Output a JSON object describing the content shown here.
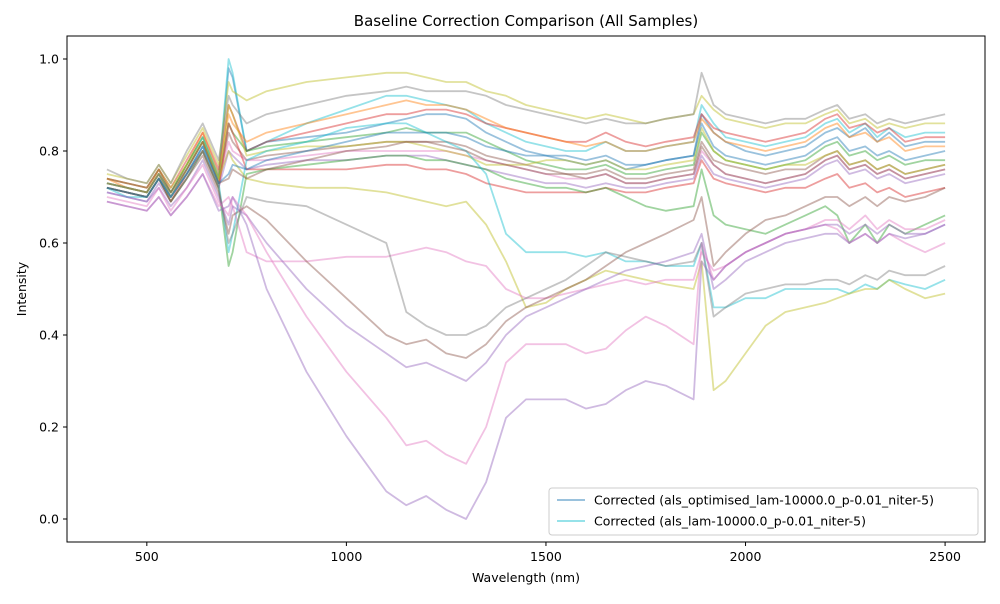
{
  "chart_data": {
    "type": "line",
    "title": "Baseline Correction Comparison (All Samples)",
    "xlabel": "Wavelength (nm)",
    "ylabel": "Intensity",
    "xlim": [
      300,
      2600
    ],
    "ylim": [
      -0.05,
      1.05
    ],
    "xticks": [
      500,
      1000,
      1500,
      2000,
      2500
    ],
    "yticks": [
      0.0,
      0.2,
      0.4,
      0.6,
      0.8,
      1.0
    ],
    "grid": false,
    "legend_position": "lower right",
    "x": [
      400,
      450,
      500,
      530,
      560,
      600,
      640,
      680,
      705,
      715,
      750,
      800,
      900,
      1000,
      1100,
      1150,
      1200,
      1250,
      1300,
      1350,
      1400,
      1450,
      1500,
      1550,
      1600,
      1650,
      1700,
      1750,
      1800,
      1870,
      1890,
      1920,
      1950,
      2000,
      2050,
      2100,
      2150,
      2200,
      2230,
      2260,
      2300,
      2330,
      2360,
      2400,
      2450,
      2500
    ],
    "legend": [
      "Corrected (als_optimised_lam-10000.0_p-0.01_niter-5)",
      "Corrected (als_lam-10000.0_p-0.01_niter-5)"
    ],
    "series": [
      {
        "color": "#1f77b4",
        "values": [
          0.72,
          0.71,
          0.7,
          0.74,
          0.7,
          0.76,
          0.82,
          0.74,
          0.98,
          0.96,
          0.8,
          0.82,
          0.83,
          0.84,
          0.86,
          0.87,
          0.88,
          0.88,
          0.87,
          0.84,
          0.82,
          0.8,
          0.79,
          0.78,
          0.77,
          0.78,
          0.76,
          0.77,
          0.78,
          0.79,
          0.88,
          0.84,
          0.82,
          0.8,
          0.79,
          0.8,
          0.81,
          0.84,
          0.85,
          0.83,
          0.85,
          0.82,
          0.84,
          0.81,
          0.82,
          0.82
        ]
      },
      {
        "color": "#17becf",
        "values": [
          0.73,
          0.72,
          0.71,
          0.75,
          0.71,
          0.77,
          0.83,
          0.75,
          1.0,
          0.97,
          0.8,
          0.82,
          0.86,
          0.89,
          0.92,
          0.92,
          0.91,
          0.9,
          0.89,
          0.86,
          0.84,
          0.82,
          0.81,
          0.8,
          0.8,
          0.82,
          0.8,
          0.8,
          0.81,
          0.82,
          0.9,
          0.86,
          0.83,
          0.82,
          0.81,
          0.82,
          0.83,
          0.86,
          0.87,
          0.84,
          0.86,
          0.83,
          0.85,
          0.83,
          0.84,
          0.84
        ]
      },
      {
        "color": "#d62728",
        "values": [
          0.74,
          0.73,
          0.72,
          0.76,
          0.72,
          0.78,
          0.84,
          0.76,
          0.9,
          0.88,
          0.8,
          0.82,
          0.84,
          0.86,
          0.88,
          0.88,
          0.89,
          0.89,
          0.88,
          0.86,
          0.85,
          0.84,
          0.83,
          0.82,
          0.82,
          0.84,
          0.82,
          0.81,
          0.82,
          0.83,
          0.88,
          0.85,
          0.84,
          0.83,
          0.82,
          0.83,
          0.84,
          0.87,
          0.88,
          0.85,
          0.86,
          0.84,
          0.85,
          0.82,
          0.83,
          0.83
        ]
      },
      {
        "color": "#bcbd22",
        "values": [
          0.75,
          0.74,
          0.73,
          0.77,
          0.73,
          0.79,
          0.85,
          0.77,
          0.95,
          0.93,
          0.91,
          0.93,
          0.95,
          0.96,
          0.97,
          0.97,
          0.96,
          0.95,
          0.95,
          0.93,
          0.92,
          0.9,
          0.89,
          0.88,
          0.87,
          0.88,
          0.87,
          0.86,
          0.87,
          0.88,
          0.92,
          0.89,
          0.87,
          0.86,
          0.85,
          0.86,
          0.86,
          0.88,
          0.89,
          0.86,
          0.87,
          0.85,
          0.86,
          0.85,
          0.86,
          0.86
        ]
      },
      {
        "color": "#7f7f7f",
        "values": [
          0.76,
          0.74,
          0.73,
          0.77,
          0.73,
          0.8,
          0.86,
          0.78,
          0.92,
          0.9,
          0.86,
          0.88,
          0.9,
          0.92,
          0.93,
          0.94,
          0.93,
          0.93,
          0.93,
          0.92,
          0.9,
          0.89,
          0.88,
          0.87,
          0.86,
          0.87,
          0.86,
          0.86,
          0.87,
          0.88,
          0.97,
          0.9,
          0.88,
          0.87,
          0.86,
          0.87,
          0.87,
          0.89,
          0.9,
          0.87,
          0.88,
          0.86,
          0.87,
          0.86,
          0.87,
          0.88
        ]
      },
      {
        "color": "#ff7f0e",
        "values": [
          0.74,
          0.72,
          0.71,
          0.76,
          0.71,
          0.77,
          0.84,
          0.75,
          0.88,
          0.86,
          0.82,
          0.84,
          0.86,
          0.88,
          0.9,
          0.91,
          0.9,
          0.9,
          0.89,
          0.87,
          0.85,
          0.84,
          0.83,
          0.82,
          0.81,
          0.82,
          0.8,
          0.8,
          0.81,
          0.82,
          0.87,
          0.84,
          0.82,
          0.81,
          0.8,
          0.81,
          0.82,
          0.85,
          0.86,
          0.83,
          0.84,
          0.82,
          0.83,
          0.8,
          0.81,
          0.81
        ]
      },
      {
        "color": "#2ca02c",
        "values": [
          0.73,
          0.72,
          0.71,
          0.75,
          0.71,
          0.77,
          0.83,
          0.74,
          0.86,
          0.84,
          0.8,
          0.81,
          0.82,
          0.83,
          0.84,
          0.85,
          0.84,
          0.84,
          0.84,
          0.82,
          0.8,
          0.78,
          0.77,
          0.76,
          0.76,
          0.77,
          0.75,
          0.75,
          0.76,
          0.77,
          0.84,
          0.8,
          0.78,
          0.77,
          0.76,
          0.77,
          0.78,
          0.81,
          0.82,
          0.79,
          0.8,
          0.78,
          0.79,
          0.77,
          0.78,
          0.78
        ]
      },
      {
        "color": "#8c564b",
        "values": [
          0.73,
          0.72,
          0.71,
          0.75,
          0.7,
          0.76,
          0.82,
          0.73,
          0.84,
          0.82,
          0.78,
          0.79,
          0.8,
          0.81,
          0.82,
          0.82,
          0.82,
          0.82,
          0.81,
          0.79,
          0.78,
          0.77,
          0.76,
          0.75,
          0.75,
          0.76,
          0.74,
          0.74,
          0.75,
          0.76,
          0.82,
          0.78,
          0.77,
          0.76,
          0.75,
          0.76,
          0.76,
          0.79,
          0.8,
          0.77,
          0.78,
          0.76,
          0.77,
          0.75,
          0.76,
          0.77
        ]
      },
      {
        "color": "#e377c2",
        "values": [
          0.72,
          0.71,
          0.7,
          0.74,
          0.7,
          0.75,
          0.81,
          0.73,
          0.82,
          0.8,
          0.78,
          0.78,
          0.79,
          0.8,
          0.8,
          0.8,
          0.8,
          0.8,
          0.79,
          0.78,
          0.77,
          0.76,
          0.75,
          0.74,
          0.74,
          0.75,
          0.73,
          0.73,
          0.74,
          0.75,
          0.8,
          0.77,
          0.75,
          0.74,
          0.73,
          0.74,
          0.75,
          0.78,
          0.79,
          0.76,
          0.77,
          0.75,
          0.76,
          0.74,
          0.75,
          0.76
        ]
      },
      {
        "color": "#9467bd",
        "values": [
          0.71,
          0.7,
          0.69,
          0.73,
          0.69,
          0.74,
          0.8,
          0.72,
          0.8,
          0.79,
          0.76,
          0.77,
          0.78,
          0.78,
          0.79,
          0.79,
          0.79,
          0.78,
          0.77,
          0.76,
          0.75,
          0.74,
          0.73,
          0.73,
          0.72,
          0.73,
          0.72,
          0.72,
          0.73,
          0.74,
          0.79,
          0.75,
          0.74,
          0.73,
          0.72,
          0.73,
          0.74,
          0.77,
          0.78,
          0.75,
          0.76,
          0.74,
          0.75,
          0.73,
          0.74,
          0.75
        ]
      },
      {
        "color": "#bcbd22",
        "values": [
          0.73,
          0.72,
          0.71,
          0.75,
          0.7,
          0.76,
          0.82,
          0.73,
          0.9,
          0.88,
          0.79,
          0.8,
          0.81,
          0.81,
          0.82,
          0.82,
          0.81,
          0.8,
          0.79,
          0.77,
          0.77,
          0.77,
          0.78,
          0.78,
          0.77,
          0.78,
          0.76,
          0.76,
          0.77,
          0.78,
          0.85,
          0.8,
          0.78,
          0.77,
          0.76,
          0.77,
          0.77,
          0.79,
          0.8,
          0.77,
          0.78,
          0.76,
          0.77,
          0.75,
          0.76,
          0.77
        ]
      },
      {
        "color": "#d62728",
        "values": [
          0.72,
          0.71,
          0.7,
          0.74,
          0.69,
          0.75,
          0.8,
          0.72,
          0.86,
          0.84,
          0.76,
          0.76,
          0.76,
          0.76,
          0.77,
          0.77,
          0.76,
          0.76,
          0.75,
          0.73,
          0.72,
          0.71,
          0.71,
          0.71,
          0.71,
          0.72,
          0.71,
          0.71,
          0.72,
          0.73,
          0.78,
          0.74,
          0.73,
          0.72,
          0.71,
          0.72,
          0.72,
          0.74,
          0.75,
          0.72,
          0.73,
          0.71,
          0.72,
          0.7,
          0.71,
          0.72
        ]
      },
      {
        "color": "#2ca02c",
        "values": [
          0.72,
          0.71,
          0.7,
          0.74,
          0.69,
          0.74,
          0.8,
          0.72,
          0.55,
          0.58,
          0.75,
          0.76,
          0.77,
          0.78,
          0.79,
          0.79,
          0.78,
          0.78,
          0.77,
          0.76,
          0.74,
          0.73,
          0.72,
          0.72,
          0.71,
          0.72,
          0.7,
          0.68,
          0.67,
          0.68,
          0.76,
          0.66,
          0.64,
          0.63,
          0.62,
          0.64,
          0.66,
          0.68,
          0.66,
          0.6,
          0.64,
          0.6,
          0.64,
          0.62,
          0.64,
          0.66
        ]
      },
      {
        "color": "#17becf",
        "values": [
          0.72,
          0.7,
          0.7,
          0.74,
          0.7,
          0.75,
          0.81,
          0.73,
          0.58,
          0.62,
          0.78,
          0.8,
          0.82,
          0.85,
          0.86,
          0.86,
          0.84,
          0.82,
          0.8,
          0.75,
          0.62,
          0.58,
          0.58,
          0.58,
          0.57,
          0.58,
          0.56,
          0.56,
          0.55,
          0.55,
          0.6,
          0.46,
          0.46,
          0.48,
          0.48,
          0.5,
          0.5,
          0.5,
          0.5,
          0.49,
          0.51,
          0.5,
          0.52,
          0.51,
          0.5,
          0.52
        ]
      },
      {
        "color": "#bcbd22",
        "values": [
          0.74,
          0.73,
          0.72,
          0.76,
          0.72,
          0.77,
          0.82,
          0.74,
          0.8,
          0.78,
          0.74,
          0.73,
          0.72,
          0.72,
          0.71,
          0.7,
          0.69,
          0.68,
          0.69,
          0.64,
          0.56,
          0.46,
          0.47,
          0.5,
          0.52,
          0.54,
          0.53,
          0.52,
          0.51,
          0.5,
          0.56,
          0.28,
          0.3,
          0.36,
          0.42,
          0.45,
          0.46,
          0.47,
          0.48,
          0.49,
          0.5,
          0.5,
          0.52,
          0.5,
          0.48,
          0.49
        ]
      },
      {
        "color": "#e377c2",
        "values": [
          0.69,
          0.68,
          0.67,
          0.7,
          0.66,
          0.7,
          0.75,
          0.68,
          0.7,
          0.68,
          0.58,
          0.56,
          0.56,
          0.57,
          0.57,
          0.58,
          0.59,
          0.58,
          0.56,
          0.55,
          0.5,
          0.48,
          0.48,
          0.49,
          0.5,
          0.51,
          0.52,
          0.51,
          0.52,
          0.52,
          0.58,
          0.54,
          0.55,
          0.58,
          0.6,
          0.62,
          0.63,
          0.64,
          0.63,
          0.6,
          0.62,
          0.6,
          0.62,
          0.6,
          0.58,
          0.6
        ]
      },
      {
        "color": "#7f7f7f",
        "values": [
          0.73,
          0.72,
          0.71,
          0.75,
          0.7,
          0.75,
          0.8,
          0.72,
          0.6,
          0.62,
          0.7,
          0.69,
          0.68,
          0.64,
          0.6,
          0.45,
          0.42,
          0.4,
          0.4,
          0.42,
          0.46,
          0.48,
          0.5,
          0.52,
          0.55,
          0.58,
          0.57,
          0.56,
          0.55,
          0.56,
          0.6,
          0.44,
          0.46,
          0.49,
          0.5,
          0.51,
          0.51,
          0.52,
          0.52,
          0.51,
          0.53,
          0.52,
          0.54,
          0.53,
          0.53,
          0.55
        ]
      },
      {
        "color": "#8c564b",
        "values": [
          0.72,
          0.71,
          0.7,
          0.74,
          0.69,
          0.74,
          0.79,
          0.71,
          0.62,
          0.66,
          0.68,
          0.65,
          0.56,
          0.48,
          0.4,
          0.38,
          0.39,
          0.36,
          0.35,
          0.38,
          0.43,
          0.46,
          0.48,
          0.5,
          0.52,
          0.55,
          0.58,
          0.6,
          0.62,
          0.65,
          0.7,
          0.55,
          0.58,
          0.62,
          0.65,
          0.66,
          0.68,
          0.7,
          0.7,
          0.68,
          0.7,
          0.68,
          0.7,
          0.69,
          0.7,
          0.72
        ]
      },
      {
        "color": "#9467bd",
        "values": [
          0.71,
          0.7,
          0.69,
          0.72,
          0.68,
          0.72,
          0.78,
          0.7,
          0.64,
          0.68,
          0.66,
          0.6,
          0.5,
          0.42,
          0.36,
          0.33,
          0.34,
          0.32,
          0.3,
          0.34,
          0.4,
          0.44,
          0.46,
          0.48,
          0.5,
          0.52,
          0.54,
          0.55,
          0.56,
          0.58,
          0.62,
          0.5,
          0.52,
          0.56,
          0.58,
          0.6,
          0.61,
          0.62,
          0.62,
          0.6,
          0.62,
          0.6,
          0.62,
          0.61,
          0.62,
          0.64
        ]
      },
      {
        "color": "#e377c2",
        "values": [
          0.7,
          0.69,
          0.68,
          0.72,
          0.67,
          0.72,
          0.77,
          0.69,
          0.66,
          0.7,
          0.66,
          0.58,
          0.44,
          0.32,
          0.22,
          0.16,
          0.17,
          0.14,
          0.12,
          0.2,
          0.34,
          0.38,
          0.38,
          0.38,
          0.36,
          0.37,
          0.41,
          0.44,
          0.42,
          0.38,
          0.6,
          0.52,
          0.55,
          0.58,
          0.6,
          0.62,
          0.63,
          0.65,
          0.65,
          0.63,
          0.66,
          0.63,
          0.65,
          0.63,
          0.63,
          0.65
        ]
      },
      {
        "color": "#9467bd",
        "values": [
          0.69,
          0.68,
          0.67,
          0.7,
          0.66,
          0.7,
          0.75,
          0.67,
          0.68,
          0.7,
          0.64,
          0.5,
          0.32,
          0.18,
          0.06,
          0.03,
          0.05,
          0.02,
          0.0,
          0.08,
          0.22,
          0.26,
          0.26,
          0.26,
          0.24,
          0.25,
          0.28,
          0.3,
          0.29,
          0.26,
          0.56,
          0.52,
          0.55,
          0.58,
          0.6,
          0.62,
          0.63,
          0.64,
          0.64,
          0.62,
          0.64,
          0.62,
          0.64,
          0.62,
          0.62,
          0.64
        ]
      },
      {
        "color": "#8c564b",
        "values": [
          0.74,
          0.73,
          0.72,
          0.76,
          0.71,
          0.76,
          0.82,
          0.73,
          0.74,
          0.76,
          0.74,
          0.76,
          0.78,
          0.8,
          0.81,
          0.82,
          0.82,
          0.81,
          0.8,
          0.78,
          0.77,
          0.76,
          0.75,
          0.75,
          0.74,
          0.75,
          0.73,
          0.73,
          0.74,
          0.75,
          0.81,
          0.77,
          0.75,
          0.74,
          0.73,
          0.74,
          0.75,
          0.78,
          0.79,
          0.76,
          0.77,
          0.75,
          0.76,
          0.74,
          0.75,
          0.76
        ]
      },
      {
        "color": "#1f77b4",
        "values": [
          0.72,
          0.71,
          0.7,
          0.74,
          0.7,
          0.75,
          0.81,
          0.73,
          0.75,
          0.77,
          0.76,
          0.78,
          0.8,
          0.82,
          0.84,
          0.84,
          0.84,
          0.84,
          0.83,
          0.81,
          0.8,
          0.79,
          0.79,
          0.79,
          0.78,
          0.79,
          0.77,
          0.77,
          0.78,
          0.79,
          0.86,
          0.81,
          0.79,
          0.78,
          0.77,
          0.78,
          0.79,
          0.82,
          0.83,
          0.8,
          0.81,
          0.79,
          0.8,
          0.78,
          0.79,
          0.8
        ]
      }
    ]
  }
}
